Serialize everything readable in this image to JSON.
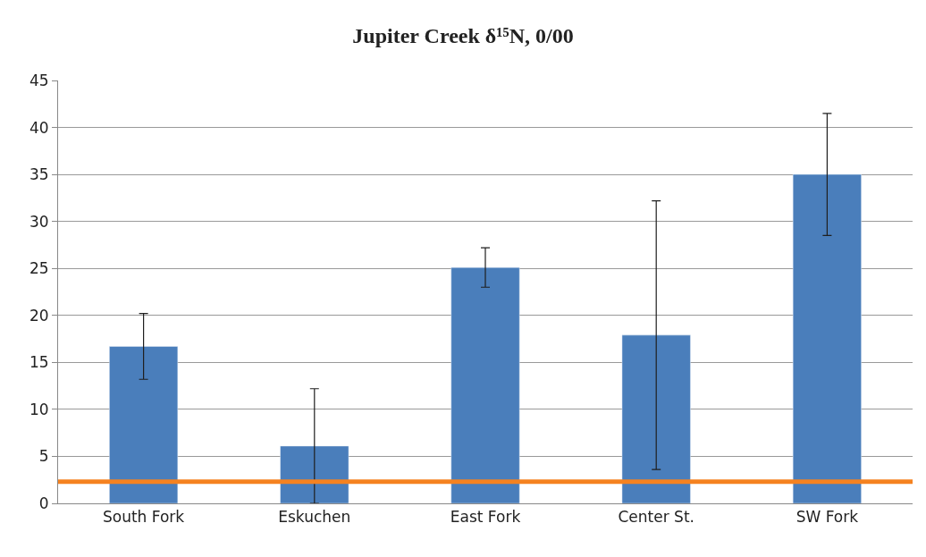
{
  "chart_data": {
    "type": "bar",
    "title": "Jupiter Creek δ¹⁵N, 0/00",
    "categories": [
      "South Fork",
      "Eskuchen",
      "East Fork",
      "Center St.",
      "SW Fork"
    ],
    "values": [
      16.7,
      6.1,
      25.1,
      17.9,
      35.0
    ],
    "errors": [
      3.5,
      6.1,
      2.1,
      14.3,
      6.5
    ],
    "color": "#4a7ebb",
    "ylim": [
      0,
      45
    ],
    "yticks": [
      0,
      5,
      10,
      15,
      20,
      25,
      30,
      35,
      40,
      45
    ],
    "grid": "y",
    "ref_lines": [
      {
        "axis": "y",
        "value": 2.3,
        "color": "#f58220"
      }
    ]
  }
}
